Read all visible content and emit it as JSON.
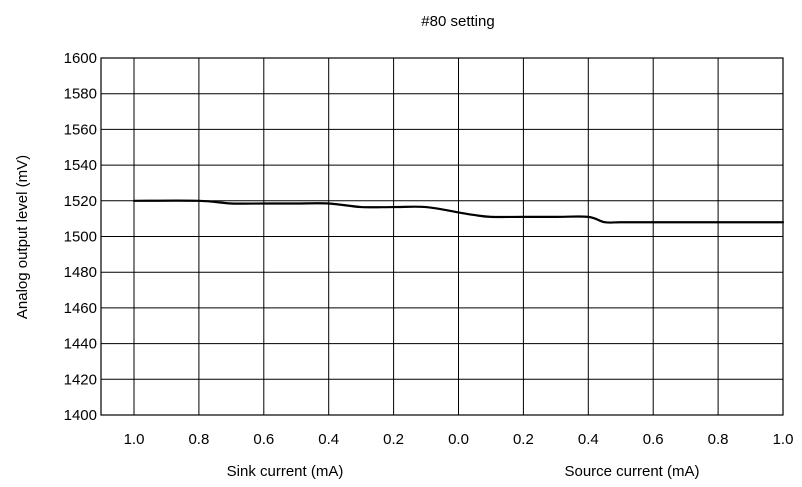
{
  "chart_data": {
    "type": "line",
    "title": "#80 setting",
    "ylabel": "Analog output level (mV)",
    "xlabel_left": "Sink current (mA)",
    "xlabel_right": "Source current (mA)",
    "ylim": [
      1400,
      1600
    ],
    "yticks": [
      1400,
      1420,
      1440,
      1460,
      1480,
      1500,
      1520,
      1540,
      1560,
      1580,
      1600
    ],
    "xlim": [
      -1.0,
      1.0
    ],
    "x_axis_note": "negative values are sink current, positive values are source current",
    "xticks": [
      -1.0,
      -0.8,
      -0.6,
      -0.4,
      -0.2,
      0.0,
      0.2,
      0.4,
      0.6,
      0.8,
      1.0
    ],
    "xtick_labels": [
      "1.0",
      "0.8",
      "0.6",
      "0.4",
      "0.2",
      "0.0",
      "0.2",
      "0.4",
      "0.6",
      "0.8",
      "1.0"
    ],
    "grid": true,
    "line_color": "#000000",
    "series": [
      {
        "x": [
          -1.0,
          -0.8,
          -0.7,
          -0.6,
          -0.5,
          -0.4,
          -0.3,
          -0.2,
          -0.1,
          0.0,
          0.05,
          0.1,
          0.2,
          0.3,
          0.4,
          0.45,
          0.5,
          0.6,
          0.7,
          0.8,
          0.9,
          1.0
        ],
        "y": [
          1520,
          1520,
          1518.5,
          1518.5,
          1518.5,
          1518.5,
          1516.5,
          1516.5,
          1516.5,
          1513.5,
          1512,
          1511,
          1511,
          1511,
          1511,
          1508,
          1508,
          1508,
          1508,
          1508,
          1508,
          1508
        ]
      }
    ]
  }
}
